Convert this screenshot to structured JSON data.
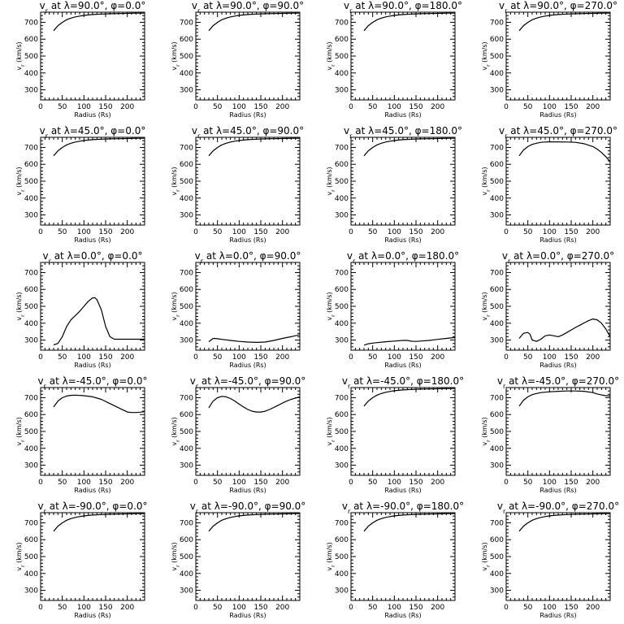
{
  "chart_data": [
    {
      "type": "line",
      "title": "v_r at λ=90.0°, φ=0.0°",
      "xlabel": "Radius (Rs)",
      "ylabel": "v_r (km/s)",
      "xlim": [
        0,
        240
      ],
      "ylim": [
        240,
        760
      ],
      "xticks": [
        0,
        50,
        100,
        150,
        200
      ],
      "yticks": [
        300,
        400,
        500,
        600,
        700
      ],
      "x": [
        30,
        40,
        50,
        60,
        70,
        80,
        90,
        100,
        120,
        140,
        160,
        180,
        200,
        220,
        240
      ],
      "y": [
        650,
        680,
        700,
        715,
        725,
        732,
        737,
        741,
        746,
        749,
        751,
        752,
        753,
        754,
        754
      ]
    },
    {
      "type": "line",
      "title": "v_r at λ=90.0°, φ=90.0°",
      "xlabel": "Radius (Rs)",
      "ylabel": "v_r (km/s)",
      "xlim": [
        0,
        240
      ],
      "ylim": [
        240,
        760
      ],
      "xticks": [
        0,
        50,
        100,
        150,
        200
      ],
      "yticks": [
        300,
        400,
        500,
        600,
        700
      ],
      "x": [
        30,
        40,
        50,
        60,
        70,
        80,
        90,
        100,
        120,
        140,
        160,
        180,
        200,
        220,
        240
      ],
      "y": [
        650,
        680,
        700,
        715,
        725,
        732,
        737,
        741,
        746,
        749,
        751,
        752,
        753,
        754,
        754
      ]
    },
    {
      "type": "line",
      "title": "v_r at λ=90.0°, φ=180.0°",
      "xlabel": "Radius (Rs)",
      "ylabel": "v_r (km/s)",
      "xlim": [
        0,
        240
      ],
      "ylim": [
        240,
        760
      ],
      "xticks": [
        0,
        50,
        100,
        150,
        200
      ],
      "yticks": [
        300,
        400,
        500,
        600,
        700
      ],
      "x": [
        30,
        40,
        50,
        60,
        70,
        80,
        90,
        100,
        120,
        140,
        160,
        180,
        200,
        220,
        240
      ],
      "y": [
        650,
        680,
        700,
        715,
        725,
        732,
        737,
        741,
        746,
        749,
        751,
        752,
        753,
        754,
        754
      ]
    },
    {
      "type": "line",
      "title": "v_r at λ=90.0°, φ=270.0°",
      "xlabel": "Radius (Rs)",
      "ylabel": "v_r (km/s)",
      "xlim": [
        0,
        240
      ],
      "ylim": [
        240,
        760
      ],
      "xticks": [
        0,
        50,
        100,
        150,
        200
      ],
      "yticks": [
        300,
        400,
        500,
        600,
        700
      ],
      "x": [
        30,
        40,
        50,
        60,
        70,
        80,
        90,
        100,
        120,
        140,
        160,
        180,
        200,
        220,
        240
      ],
      "y": [
        650,
        680,
        700,
        715,
        725,
        732,
        737,
        741,
        746,
        749,
        751,
        752,
        753,
        754,
        754
      ]
    },
    {
      "type": "line",
      "title": "v_r at λ=45.0°, φ=0.0°",
      "xlabel": "Radius (Rs)",
      "ylabel": "v_r (km/s)",
      "xlim": [
        0,
        240
      ],
      "ylim": [
        240,
        760
      ],
      "xticks": [
        0,
        50,
        100,
        150,
        200
      ],
      "yticks": [
        300,
        400,
        500,
        600,
        700
      ],
      "x": [
        30,
        40,
        50,
        60,
        70,
        80,
        90,
        100,
        120,
        140,
        160,
        180,
        200,
        220,
        240
      ],
      "y": [
        650,
        680,
        700,
        715,
        725,
        732,
        737,
        741,
        746,
        749,
        751,
        752,
        753,
        754,
        754
      ]
    },
    {
      "type": "line",
      "title": "v_r at λ=45.0°, φ=90.0°",
      "xlabel": "Radius (Rs)",
      "ylabel": "v_r (km/s)",
      "xlim": [
        0,
        240
      ],
      "ylim": [
        240,
        760
      ],
      "xticks": [
        0,
        50,
        100,
        150,
        200
      ],
      "yticks": [
        300,
        400,
        500,
        600,
        700
      ],
      "x": [
        30,
        40,
        50,
        60,
        70,
        80,
        90,
        100,
        120,
        140,
        160,
        180,
        200,
        220,
        240
      ],
      "y": [
        650,
        680,
        700,
        715,
        725,
        732,
        737,
        741,
        746,
        749,
        751,
        752,
        753,
        754,
        754
      ]
    },
    {
      "type": "line",
      "title": "v_r at λ=45.0°, φ=180.0°",
      "xlabel": "Radius (Rs)",
      "ylabel": "v_r (km/s)",
      "xlim": [
        0,
        240
      ],
      "ylim": [
        240,
        760
      ],
      "xticks": [
        0,
        50,
        100,
        150,
        200
      ],
      "yticks": [
        300,
        400,
        500,
        600,
        700
      ],
      "x": [
        30,
        40,
        50,
        60,
        70,
        80,
        90,
        100,
        120,
        140,
        160,
        180,
        200,
        220,
        240
      ],
      "y": [
        650,
        680,
        700,
        715,
        725,
        732,
        737,
        741,
        746,
        749,
        751,
        752,
        753,
        754,
        754
      ]
    },
    {
      "type": "line",
      "title": "v_r at λ=45.0°, φ=270.0°",
      "xlabel": "Radius (Rs)",
      "ylabel": "v_r (km/s)",
      "xlim": [
        0,
        240
      ],
      "ylim": [
        240,
        760
      ],
      "xticks": [
        0,
        50,
        100,
        150,
        200
      ],
      "yticks": [
        300,
        400,
        500,
        600,
        700
      ],
      "x": [
        30,
        40,
        50,
        60,
        70,
        80,
        90,
        100,
        120,
        140,
        160,
        180,
        200,
        210,
        220,
        230,
        240
      ],
      "y": [
        650,
        685,
        705,
        718,
        725,
        730,
        732,
        733,
        733,
        732,
        730,
        722,
        705,
        690,
        670,
        645,
        615
      ]
    },
    {
      "type": "line",
      "title": "v_r at λ=0.0°, φ=0.0°",
      "xlabel": "Radius (Rs)",
      "ylabel": "v_r (km/s)",
      "xlim": [
        0,
        240
      ],
      "ylim": [
        240,
        760
      ],
      "xticks": [
        0,
        50,
        100,
        150,
        200
      ],
      "yticks": [
        300,
        400,
        500,
        600,
        700
      ],
      "x": [
        30,
        40,
        50,
        60,
        70,
        80,
        90,
        100,
        110,
        120,
        125,
        130,
        140,
        150,
        160,
        170,
        180,
        200,
        220,
        240
      ],
      "y": [
        272,
        280,
        320,
        380,
        420,
        445,
        470,
        500,
        530,
        550,
        551,
        540,
        480,
        380,
        320,
        305,
        305,
        305,
        305,
        305
      ]
    },
    {
      "type": "line",
      "title": "v_r at λ=0.0°, φ=90.0°",
      "xlabel": "Radius (Rs)",
      "ylabel": "v_r (km/s)",
      "xlim": [
        0,
        240
      ],
      "ylim": [
        240,
        760
      ],
      "xticks": [
        0,
        50,
        100,
        150,
        200
      ],
      "yticks": [
        300,
        400,
        500,
        600,
        700
      ],
      "x": [
        30,
        40,
        50,
        60,
        80,
        100,
        120,
        140,
        160,
        180,
        200,
        220,
        240
      ],
      "y": [
        290,
        310,
        308,
        304,
        298,
        292,
        288,
        286,
        288,
        298,
        310,
        320,
        332
      ]
    },
    {
      "type": "line",
      "title": "v_r at λ=0.0°, φ=180.0°",
      "xlabel": "Radius (Rs)",
      "ylabel": "v_r (km/s)",
      "xlim": [
        0,
        240
      ],
      "ylim": [
        240,
        760
      ],
      "xticks": [
        0,
        50,
        100,
        150,
        200
      ],
      "yticks": [
        300,
        400,
        500,
        600,
        700
      ],
      "x": [
        30,
        40,
        50,
        60,
        80,
        100,
        120,
        130,
        140,
        150,
        160,
        180,
        200,
        220,
        240
      ],
      "y": [
        270,
        278,
        282,
        285,
        290,
        294,
        298,
        298,
        293,
        292,
        294,
        298,
        304,
        310,
        315
      ]
    },
    {
      "type": "line",
      "title": "v_r at λ=0.0°, φ=270.0°",
      "xlabel": "Radius (Rs)",
      "ylabel": "v_r (km/s)",
      "xlim": [
        0,
        240
      ],
      "ylim": [
        240,
        760
      ],
      "xticks": [
        0,
        50,
        100,
        150,
        200
      ],
      "yticks": [
        300,
        400,
        500,
        600,
        700
      ],
      "x": [
        30,
        40,
        50,
        55,
        60,
        70,
        80,
        90,
        100,
        110,
        120,
        130,
        140,
        150,
        160,
        170,
        180,
        190,
        200,
        210,
        220,
        230,
        240
      ],
      "y": [
        310,
        340,
        345,
        335,
        300,
        292,
        305,
        325,
        330,
        325,
        320,
        330,
        345,
        360,
        375,
        388,
        402,
        415,
        425,
        420,
        400,
        365,
        320
      ]
    },
    {
      "type": "line",
      "title": "v_r at λ=-45.0°, φ=0.0°",
      "xlabel": "Radius (Rs)",
      "ylabel": "v_r (km/s)",
      "xlim": [
        0,
        240
      ],
      "ylim": [
        240,
        760
      ],
      "xticks": [
        0,
        50,
        100,
        150,
        200
      ],
      "yticks": [
        300,
        400,
        500,
        600,
        700
      ],
      "x": [
        30,
        40,
        50,
        60,
        70,
        80,
        100,
        120,
        140,
        160,
        180,
        200,
        210,
        220,
        230,
        240
      ],
      "y": [
        645,
        680,
        700,
        710,
        714,
        715,
        712,
        705,
        690,
        665,
        640,
        615,
        612,
        612,
        614,
        618
      ]
    },
    {
      "type": "line",
      "title": "v_r at λ=-45.0°, φ=90.0°",
      "xlabel": "Radius (Rs)",
      "ylabel": "v_r (km/s)",
      "xlim": [
        0,
        240
      ],
      "ylim": [
        240,
        760
      ],
      "xticks": [
        0,
        50,
        100,
        150,
        200
      ],
      "yticks": [
        300,
        400,
        500,
        600,
        700
      ],
      "x": [
        30,
        40,
        50,
        60,
        70,
        80,
        90,
        100,
        110,
        120,
        130,
        140,
        150,
        160,
        170,
        180,
        190,
        200,
        210,
        220,
        230,
        240
      ],
      "y": [
        640,
        680,
        700,
        708,
        705,
        695,
        680,
        662,
        645,
        630,
        620,
        615,
        615,
        620,
        630,
        642,
        655,
        668,
        680,
        690,
        698,
        705
      ]
    },
    {
      "type": "line",
      "title": "v_r at λ=-45.0°, φ=180.0°",
      "xlabel": "Radius (Rs)",
      "ylabel": "v_r (km/s)",
      "xlim": [
        0,
        240
      ],
      "ylim": [
        240,
        760
      ],
      "xticks": [
        0,
        50,
        100,
        150,
        200
      ],
      "yticks": [
        300,
        400,
        500,
        600,
        700
      ],
      "x": [
        30,
        40,
        50,
        60,
        70,
        80,
        90,
        100,
        120,
        140,
        160,
        180,
        200,
        220,
        240
      ],
      "y": [
        650,
        680,
        700,
        715,
        725,
        732,
        737,
        741,
        746,
        749,
        751,
        752,
        753,
        754,
        754
      ]
    },
    {
      "type": "line",
      "title": "v_r at λ=-45.0°, φ=270.0°",
      "xlabel": "Radius (Rs)",
      "ylabel": "v_r (km/s)",
      "xlim": [
        0,
        240
      ],
      "ylim": [
        240,
        760
      ],
      "xticks": [
        0,
        50,
        100,
        150,
        200
      ],
      "yticks": [
        300,
        400,
        500,
        600,
        700
      ],
      "x": [
        30,
        40,
        50,
        60,
        70,
        80,
        100,
        120,
        140,
        160,
        180,
        200,
        210,
        220,
        230,
        240
      ],
      "y": [
        650,
        685,
        705,
        718,
        725,
        730,
        735,
        738,
        740,
        740,
        738,
        730,
        722,
        716,
        712,
        710
      ]
    },
    {
      "type": "line",
      "title": "v_r at λ=-90.0°, φ=0.0°",
      "xlabel": "Radius (Rs)",
      "ylabel": "v_r (km/s)",
      "xlim": [
        0,
        240
      ],
      "ylim": [
        240,
        760
      ],
      "xticks": [
        0,
        50,
        100,
        150,
        200
      ],
      "yticks": [
        300,
        400,
        500,
        600,
        700
      ],
      "x": [
        30,
        40,
        50,
        60,
        70,
        80,
        90,
        100,
        120,
        140,
        160,
        180,
        200,
        220,
        240
      ],
      "y": [
        650,
        680,
        700,
        715,
        725,
        732,
        737,
        741,
        746,
        749,
        751,
        752,
        753,
        754,
        754
      ]
    },
    {
      "type": "line",
      "title": "v_r at λ=-90.0°, φ=90.0°",
      "xlabel": "Radius (Rs)",
      "ylabel": "v_r (km/s)",
      "xlim": [
        0,
        240
      ],
      "ylim": [
        240,
        760
      ],
      "xticks": [
        0,
        50,
        100,
        150,
        200
      ],
      "yticks": [
        300,
        400,
        500,
        600,
        700
      ],
      "x": [
        30,
        40,
        50,
        60,
        70,
        80,
        90,
        100,
        120,
        140,
        160,
        180,
        200,
        220,
        240
      ],
      "y": [
        650,
        680,
        700,
        715,
        725,
        732,
        737,
        741,
        746,
        749,
        751,
        752,
        753,
        754,
        754
      ]
    },
    {
      "type": "line",
      "title": "v_r at λ=-90.0°, φ=180.0°",
      "xlabel": "Radius (Rs)",
      "ylabel": "v_r (km/s)",
      "xlim": [
        0,
        240
      ],
      "ylim": [
        240,
        760
      ],
      "xticks": [
        0,
        50,
        100,
        150,
        200
      ],
      "yticks": [
        300,
        400,
        500,
        600,
        700
      ],
      "x": [
        30,
        40,
        50,
        60,
        70,
        80,
        90,
        100,
        120,
        140,
        160,
        180,
        200,
        220,
        240
      ],
      "y": [
        650,
        680,
        700,
        715,
        725,
        732,
        737,
        741,
        746,
        749,
        751,
        752,
        753,
        754,
        754
      ]
    },
    {
      "type": "line",
      "title": "v_r at λ=-90.0°, φ=270.0°",
      "xlabel": "Radius (Rs)",
      "ylabel": "v_r (km/s)",
      "xlim": [
        0,
        240
      ],
      "ylim": [
        240,
        760
      ],
      "xticks": [
        0,
        50,
        100,
        150,
        200
      ],
      "yticks": [
        300,
        400,
        500,
        600,
        700
      ],
      "x": [
        30,
        40,
        50,
        60,
        70,
        80,
        90,
        100,
        120,
        140,
        160,
        180,
        200,
        220,
        240
      ],
      "y": [
        650,
        680,
        700,
        715,
        725,
        732,
        737,
        741,
        746,
        749,
        751,
        752,
        753,
        754,
        754
      ]
    }
  ]
}
